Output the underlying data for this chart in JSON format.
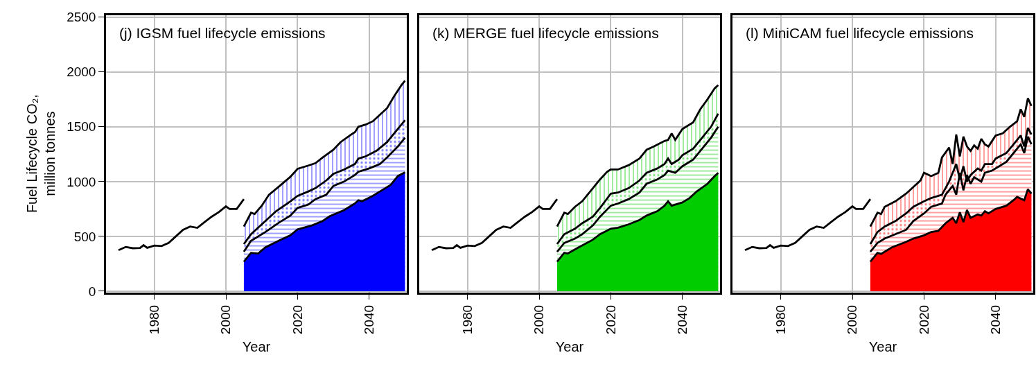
{
  "chart_data": [
    {
      "type": "area",
      "title": "(j) IGSM fuel lifecycle emissions",
      "xlabel": "Year",
      "ylabel": "Fuel Lifecycle CO₂,\nmillion tonnes",
      "xlim": [
        1966.5,
        2050.5
      ],
      "xticks": [
        1980,
        2000,
        2020,
        2040
      ],
      "ylim": [
        -10,
        2520
      ],
      "yticks": [
        0,
        500,
        1000,
        1500,
        2000,
        2500
      ],
      "grid": true,
      "series": [
        {
          "type": "line",
          "color": "#000000",
          "x": [
            1970,
            1972,
            1974,
            1976,
            1977,
            1978,
            1980,
            1982,
            1984,
            1986,
            1988,
            1990,
            1992,
            1994,
            1996,
            1998,
            2000,
            2001,
            2003,
            2005
          ],
          "values": [
            374,
            404,
            392,
            394,
            420,
            396,
            416,
            412,
            440,
            500,
            560,
            590,
            578,
            630,
            680,
            722,
            774,
            750,
            750,
            840
          ]
        },
        {
          "color": "#0000ff",
          "x": [
            2005,
            2007,
            2009,
            2011,
            2015,
            2018,
            2020,
            2024,
            2027,
            2029,
            2033,
            2036,
            2037,
            2038,
            2041,
            2043,
            2046,
            2048,
            2050
          ],
          "values": [
            270,
            350,
            344,
            400,
            464,
            510,
            564,
            600,
            640,
            684,
            740,
            800,
            830,
            820,
            870,
            910,
            970,
            1050,
            1084
          ]
        },
        {
          "color": "#0000ff",
          "x": [
            2005,
            2007,
            2011,
            2015,
            2018,
            2020,
            2023,
            2025,
            2028,
            2030,
            2033,
            2036,
            2037,
            2040,
            2043,
            2045,
            2048,
            2050
          ],
          "values": [
            360,
            460,
            540,
            630,
            690,
            760,
            790,
            840,
            880,
            960,
            1000,
            1060,
            1090,
            1120,
            1160,
            1220,
            1320,
            1400
          ]
        },
        {
          "color": "#0000ff",
          "x": [
            2005,
            2007,
            2009,
            2011,
            2014,
            2018,
            2020,
            2023,
            2025,
            2028,
            2030,
            2033,
            2036,
            2037,
            2039,
            2042,
            2045,
            2048,
            2050
          ],
          "values": [
            430,
            520,
            580,
            640,
            730,
            820,
            870,
            910,
            940,
            1010,
            1070,
            1110,
            1160,
            1210,
            1230,
            1280,
            1360,
            1480,
            1560
          ]
        },
        {
          "color": "#0000ff",
          "x": [
            2005,
            2007,
            2008,
            2010,
            2012,
            2015,
            2018,
            2020,
            2023,
            2025,
            2027,
            2030,
            2032,
            2035,
            2036,
            2037,
            2039,
            2041,
            2043,
            2045,
            2047,
            2049,
            2050
          ],
          "values": [
            590,
            716,
            704,
            780,
            880,
            960,
            1044,
            1116,
            1146,
            1168,
            1220,
            1290,
            1360,
            1430,
            1450,
            1500,
            1520,
            1550,
            1610,
            1670,
            1780,
            1880,
            1920
          ]
        }
      ]
    },
    {
      "type": "area",
      "title": "(k) MERGE fuel lifecycle emissions",
      "xlabel": "Year",
      "xlim": [
        1966.5,
        2050.5
      ],
      "xticks": [
        1980,
        2000,
        2020,
        2040
      ],
      "ylim": [
        -10,
        2520
      ],
      "tick_labels": "x",
      "grid": true,
      "series": [
        {
          "type": "line",
          "color": "#000000",
          "x": [
            1970,
            1972,
            1974,
            1976,
            1977,
            1978,
            1980,
            1982,
            1984,
            1986,
            1988,
            1990,
            1992,
            1994,
            1996,
            1998,
            2000,
            2001,
            2003,
            2005
          ],
          "values": [
            374,
            404,
            392,
            394,
            420,
            396,
            416,
            412,
            440,
            500,
            560,
            590,
            578,
            630,
            680,
            722,
            774,
            750,
            750,
            840
          ]
        },
        {
          "color": "#00cc00",
          "x": [
            2005,
            2007,
            2008,
            2011,
            2015,
            2017,
            2020,
            2022,
            2025,
            2028,
            2030,
            2033,
            2035,
            2036,
            2037,
            2040,
            2042,
            2044,
            2047,
            2049,
            2050
          ],
          "values": [
            270,
            350,
            344,
            400,
            470,
            520,
            570,
            580,
            610,
            650,
            690,
            730,
            780,
            820,
            780,
            810,
            850,
            910,
            980,
            1050,
            1080
          ]
        },
        {
          "color": "#00cc00",
          "x": [
            2005,
            2007,
            2010,
            2012,
            2015,
            2017,
            2020,
            2022,
            2025,
            2028,
            2030,
            2033,
            2035,
            2036,
            2038,
            2040,
            2043,
            2045,
            2048,
            2050
          ],
          "values": [
            360,
            440,
            480,
            520,
            600,
            680,
            780,
            800,
            840,
            900,
            980,
            1020,
            1060,
            1100,
            1080,
            1140,
            1200,
            1280,
            1400,
            1500
          ]
        },
        {
          "color": "#00cc00",
          "x": [
            2005,
            2007,
            2010,
            2012,
            2015,
            2017,
            2020,
            2022,
            2025,
            2028,
            2030,
            2033,
            2035,
            2036,
            2037,
            2039,
            2040,
            2043,
            2045,
            2048,
            2050
          ],
          "values": [
            430,
            520,
            570,
            620,
            680,
            760,
            890,
            900,
            940,
            1010,
            1080,
            1120,
            1160,
            1210,
            1160,
            1200,
            1240,
            1300,
            1380,
            1500,
            1620
          ]
        },
        {
          "color": "#00cc00",
          "x": [
            2005,
            2007,
            2008,
            2010,
            2012,
            2015,
            2017,
            2019,
            2020,
            2022,
            2025,
            2028,
            2030,
            2032,
            2035,
            2036,
            2037,
            2038,
            2039,
            2040,
            2043,
            2045,
            2047,
            2049,
            2050
          ],
          "values": [
            590,
            716,
            704,
            770,
            820,
            940,
            1020,
            1090,
            1110,
            1110,
            1150,
            1210,
            1290,
            1320,
            1370,
            1380,
            1440,
            1380,
            1430,
            1480,
            1540,
            1660,
            1750,
            1850,
            1880
          ]
        }
      ]
    },
    {
      "type": "area",
      "title": "(l) MiniCAM fuel lifecycle emissions",
      "xlabel": "Year",
      "xlim": [
        1966.5,
        2050.5
      ],
      "xticks": [
        1980,
        2000,
        2020,
        2040
      ],
      "ylim": [
        -10,
        2520
      ],
      "tick_labels": "x",
      "grid": true,
      "series": [
        {
          "type": "line",
          "color": "#000000",
          "x": [
            1970,
            1972,
            1974,
            1976,
            1977,
            1978,
            1980,
            1982,
            1984,
            1986,
            1988,
            1990,
            1992,
            1994,
            1996,
            1998,
            2000,
            2001,
            2003,
            2005
          ],
          "values": [
            374,
            404,
            392,
            394,
            420,
            396,
            416,
            412,
            440,
            500,
            560,
            590,
            578,
            630,
            680,
            722,
            774,
            750,
            750,
            840
          ]
        },
        {
          "color": "#ff0000",
          "x": [
            2005,
            2007,
            2008,
            2011,
            2015,
            2017,
            2020,
            2022,
            2024,
            2026,
            2028,
            2029,
            2030,
            2031,
            2032,
            2033,
            2035,
            2036,
            2037,
            2038,
            2040,
            2043,
            2045,
            2046,
            2048,
            2049,
            2050
          ],
          "values": [
            270,
            350,
            340,
            400,
            450,
            480,
            510,
            540,
            550,
            620,
            670,
            620,
            720,
            630,
            740,
            670,
            700,
            690,
            730,
            710,
            750,
            780,
            830,
            860,
            830,
            930,
            890
          ]
        },
        {
          "color": "#ff0000",
          "x": [
            2005,
            2007,
            2009,
            2012,
            2015,
            2017,
            2020,
            2022,
            2025,
            2026,
            2028,
            2029,
            2030,
            2031,
            2032,
            2033,
            2034,
            2036,
            2037,
            2039,
            2041,
            2043,
            2045,
            2047,
            2048,
            2049,
            2050
          ],
          "values": [
            360,
            440,
            480,
            520,
            560,
            640,
            710,
            770,
            800,
            880,
            960,
            880,
            1080,
            920,
            1060,
            980,
            1040,
            1000,
            1080,
            1100,
            1140,
            1180,
            1260,
            1340,
            1260,
            1410,
            1340
          ]
        },
        {
          "color": "#ff0000",
          "x": [
            2005,
            2007,
            2009,
            2012,
            2015,
            2017,
            2020,
            2022,
            2025,
            2027,
            2028,
            2029,
            2030,
            2031,
            2032,
            2033,
            2035,
            2036,
            2037,
            2039,
            2040,
            2043,
            2045,
            2047,
            2048,
            2049,
            2050
          ],
          "values": [
            430,
            540,
            590,
            640,
            710,
            770,
            820,
            850,
            880,
            1000,
            1080,
            1160,
            1020,
            1140,
            1000,
            1060,
            1120,
            1100,
            1160,
            1160,
            1210,
            1260,
            1340,
            1420,
            1320,
            1490,
            1430
          ]
        },
        {
          "color": "#ff0000",
          "x": [
            2005,
            2007,
            2008,
            2009,
            2012,
            2015,
            2017,
            2019,
            2020,
            2022,
            2024,
            2025,
            2027,
            2028,
            2029,
            2030,
            2031,
            2032,
            2033,
            2034,
            2035,
            2036,
            2037,
            2038,
            2039,
            2040,
            2042,
            2044,
            2046,
            2047,
            2048,
            2049,
            2050
          ],
          "values": [
            590,
            716,
            704,
            770,
            820,
            890,
            950,
            1010,
            1080,
            1050,
            1080,
            1220,
            1310,
            1160,
            1430,
            1230,
            1410,
            1320,
            1280,
            1330,
            1300,
            1390,
            1340,
            1320,
            1370,
            1420,
            1440,
            1500,
            1550,
            1660,
            1590,
            1760,
            1690
          ]
        }
      ]
    }
  ]
}
